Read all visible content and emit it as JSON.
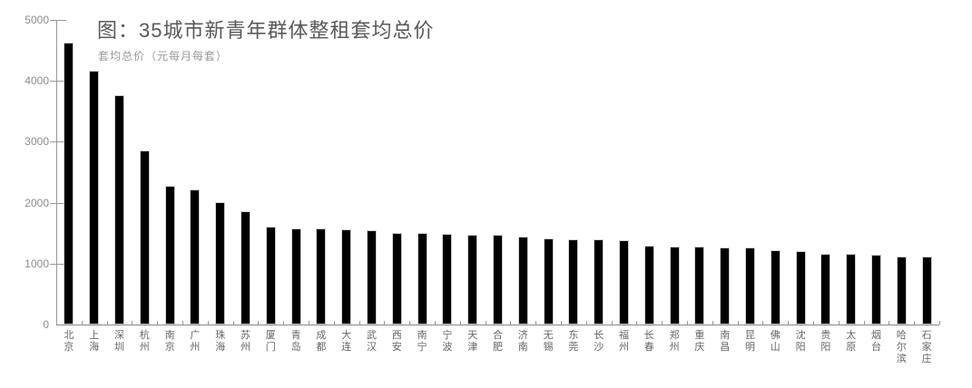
{
  "chart_data": {
    "type": "bar",
    "title": "图：35城市新青年群体整租套均总价",
    "unit_label": "套均总价（元每月每套）",
    "categories": [
      "北京",
      "上海",
      "深圳",
      "杭州",
      "南京",
      "广州",
      "珠海",
      "苏州",
      "厦门",
      "青岛",
      "成都",
      "大连",
      "武汉",
      "西安",
      "南宁",
      "宁波",
      "天津",
      "合肥",
      "济南",
      "无锡",
      "东莞",
      "长沙",
      "福州",
      "长春",
      "郑州",
      "重庆",
      "南昌",
      "昆明",
      "佛山",
      "沈阳",
      "贵阳",
      "太原",
      "烟台",
      "哈尔滨",
      "石家庄"
    ],
    "values": [
      4630,
      4160,
      3770,
      2850,
      2280,
      2220,
      2010,
      1860,
      1610,
      1580,
      1570,
      1560,
      1550,
      1510,
      1500,
      1490,
      1480,
      1470,
      1440,
      1420,
      1400,
      1400,
      1380,
      1300,
      1280,
      1280,
      1260,
      1260,
      1220,
      1200,
      1160,
      1160,
      1140,
      1120,
      1110
    ],
    "ylim": [
      0,
      5000
    ],
    "yticks": [
      0,
      1000,
      2000,
      3000,
      4000,
      5000
    ],
    "xlabel": "",
    "ylabel": "",
    "grid": false,
    "legend_position": "none",
    "bar_color": "#000000",
    "text_colors": {
      "title": "#595959",
      "unit_label": "#9b9b9b",
      "axis_labels": "#8c8c8c"
    }
  }
}
